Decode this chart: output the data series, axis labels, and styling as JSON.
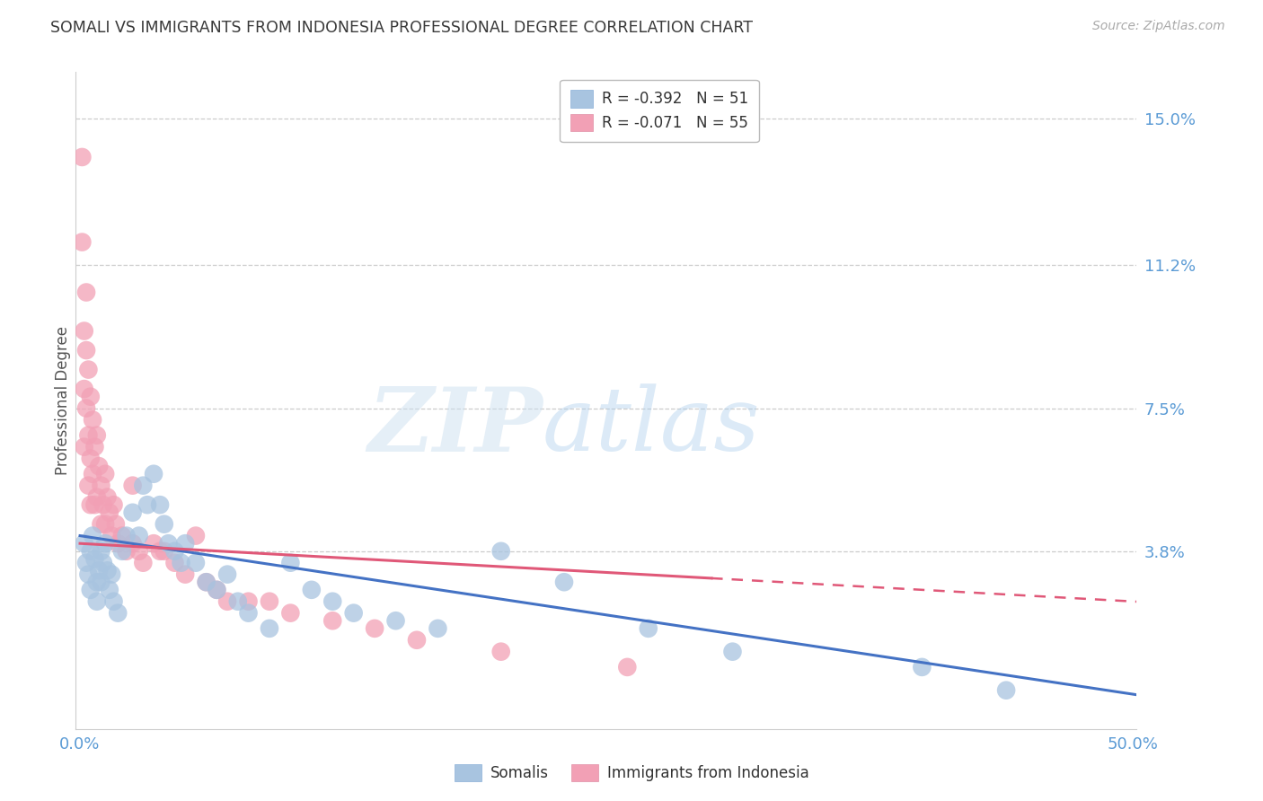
{
  "title": "SOMALI VS IMMIGRANTS FROM INDONESIA PROFESSIONAL DEGREE CORRELATION CHART",
  "source": "Source: ZipAtlas.com",
  "ylabel": "Professional Degree",
  "yticks": [
    0.0,
    0.038,
    0.075,
    0.112,
    0.15
  ],
  "ytick_labels": [
    "",
    "3.8%",
    "7.5%",
    "11.2%",
    "15.0%"
  ],
  "xlim": [
    -0.002,
    0.502
  ],
  "ylim": [
    -0.008,
    0.162
  ],
  "somali_R": -0.392,
  "somali_N": 51,
  "indonesia_R": -0.071,
  "indonesia_N": 55,
  "somali_color": "#a8c4e0",
  "indonesia_color": "#f2a0b5",
  "somali_line_color": "#4472c4",
  "indonesia_line_color": "#e05878",
  "axis_tick_color": "#5b9bd5",
  "title_color": "#3a3a3a",
  "source_color": "#aaaaaa",
  "background_color": "#ffffff",
  "grid_color": "#cccccc",
  "somali_x": [
    0.002,
    0.003,
    0.004,
    0.005,
    0.005,
    0.006,
    0.007,
    0.008,
    0.008,
    0.009,
    0.01,
    0.01,
    0.011,
    0.012,
    0.013,
    0.014,
    0.015,
    0.016,
    0.018,
    0.02,
    0.022,
    0.025,
    0.028,
    0.03,
    0.032,
    0.035,
    0.038,
    0.04,
    0.042,
    0.045,
    0.048,
    0.05,
    0.055,
    0.06,
    0.065,
    0.07,
    0.075,
    0.08,
    0.09,
    0.1,
    0.11,
    0.12,
    0.13,
    0.15,
    0.17,
    0.2,
    0.23,
    0.27,
    0.31,
    0.4,
    0.44
  ],
  "somali_y": [
    0.04,
    0.035,
    0.032,
    0.038,
    0.028,
    0.042,
    0.036,
    0.03,
    0.025,
    0.033,
    0.038,
    0.03,
    0.035,
    0.04,
    0.033,
    0.028,
    0.032,
    0.025,
    0.022,
    0.038,
    0.042,
    0.048,
    0.042,
    0.055,
    0.05,
    0.058,
    0.05,
    0.045,
    0.04,
    0.038,
    0.035,
    0.04,
    0.035,
    0.03,
    0.028,
    0.032,
    0.025,
    0.022,
    0.018,
    0.035,
    0.028,
    0.025,
    0.022,
    0.02,
    0.018,
    0.038,
    0.03,
    0.018,
    0.012,
    0.008,
    0.002
  ],
  "indonesia_x": [
    0.001,
    0.001,
    0.002,
    0.002,
    0.002,
    0.003,
    0.003,
    0.003,
    0.004,
    0.004,
    0.004,
    0.005,
    0.005,
    0.005,
    0.006,
    0.006,
    0.007,
    0.007,
    0.008,
    0.008,
    0.009,
    0.01,
    0.01,
    0.011,
    0.012,
    0.012,
    0.013,
    0.014,
    0.015,
    0.016,
    0.017,
    0.018,
    0.02,
    0.022,
    0.025,
    0.025,
    0.028,
    0.03,
    0.035,
    0.038,
    0.04,
    0.045,
    0.05,
    0.055,
    0.06,
    0.065,
    0.07,
    0.08,
    0.09,
    0.1,
    0.12,
    0.14,
    0.16,
    0.2,
    0.26
  ],
  "indonesia_y": [
    0.14,
    0.118,
    0.095,
    0.08,
    0.065,
    0.105,
    0.09,
    0.075,
    0.085,
    0.068,
    0.055,
    0.078,
    0.062,
    0.05,
    0.072,
    0.058,
    0.065,
    0.05,
    0.068,
    0.052,
    0.06,
    0.055,
    0.045,
    0.05,
    0.058,
    0.045,
    0.052,
    0.048,
    0.042,
    0.05,
    0.045,
    0.04,
    0.042,
    0.038,
    0.055,
    0.04,
    0.038,
    0.035,
    0.04,
    0.038,
    0.038,
    0.035,
    0.032,
    0.042,
    0.03,
    0.028,
    0.025,
    0.025,
    0.025,
    0.022,
    0.02,
    0.018,
    0.015,
    0.012,
    0.008
  ]
}
